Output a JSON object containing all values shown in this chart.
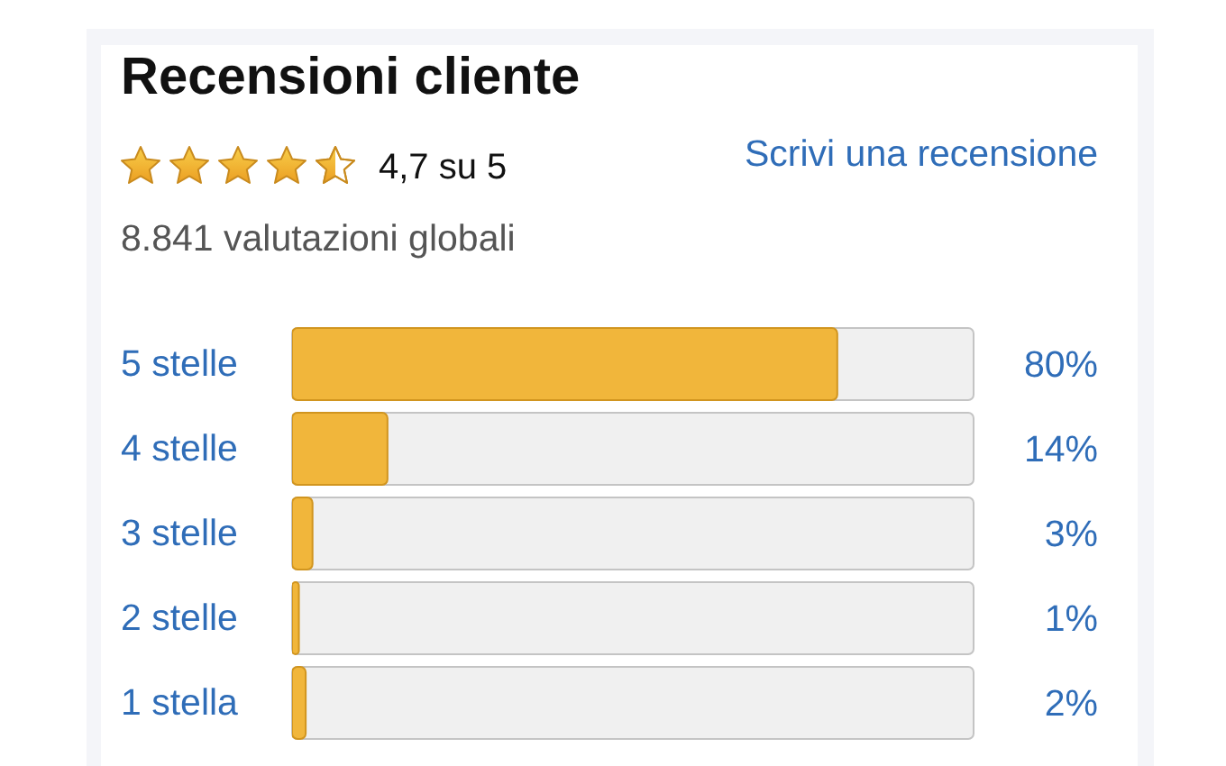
{
  "chart_data": {
    "type": "bar",
    "orientation": "horizontal",
    "title": "Recensioni cliente",
    "annotations": [
      "4,7 su 5",
      "Scrivi una recensione",
      "8.841 valutazioni globali"
    ],
    "categories": [
      "5 stelle",
      "4 stelle",
      "3 stelle",
      "2 stelle",
      "1 stella"
    ],
    "values": [
      80,
      14,
      3,
      1,
      2
    ],
    "value_labels": [
      "80%",
      "14%",
      "3%",
      "1%",
      "2%"
    ],
    "color": "#f1b63b",
    "xlim": [
      0,
      100
    ],
    "tick_labels": "y"
  }
}
